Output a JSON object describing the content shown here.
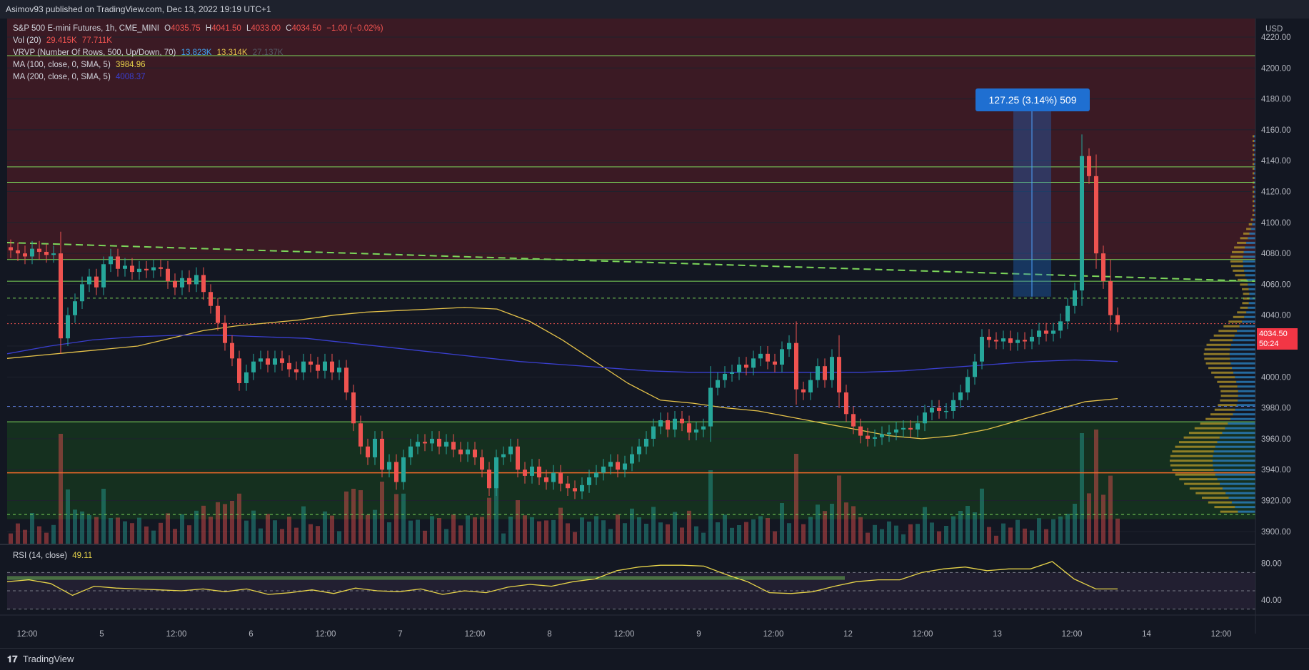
{
  "header": {
    "published_text": "Asimov93 published on TradingView.com, Dec 13, 2022 19:19 UTC+1"
  },
  "legend": {
    "symbol": "S&P 500 E-mini Futures, 1h, CME_MINI",
    "ohlc": {
      "o_label": "O",
      "o": "4035.75",
      "h_label": "H",
      "h": "4041.50",
      "l_label": "L",
      "l": "4033.00",
      "c_label": "C",
      "c": "4034.50",
      "change": "−1.00 (−0.02%)"
    },
    "vol": {
      "label": "Vol (20)",
      "v1": "29.415K",
      "v2": "77.711K"
    },
    "vrvp": {
      "label": "VRVP (Number Of Rows, 500, Up/Down, 70)",
      "v1": "13.823K",
      "v2": "13.314K",
      "v3": "27.137K"
    },
    "ma100": {
      "label": "MA (100, close, 0, SMA, 5)",
      "value": "3984.96"
    },
    "ma200": {
      "label": "MA (200, close, 0, SMA, 5)",
      "value": "4008.37"
    },
    "rsi": {
      "label": "RSI (14, close)",
      "value": "49.11"
    }
  },
  "colors": {
    "up": "#26a69a",
    "down": "#ef5350",
    "ma100": "#e6c34a",
    "ma200": "#3a3fd0",
    "rsi": "#e6d34a",
    "resistance_zone": "#4a1c26",
    "support_zone": "#16351f",
    "green_line": "#7cd65a",
    "orange_line": "#f26a2a",
    "measure": "#1f6fd1",
    "price_tag": "#f23645",
    "background": "#131722"
  },
  "measure_label": "127.25 (3.14%) 509",
  "last_price": {
    "price": "4034.50",
    "countdown": "50:24"
  },
  "price_axis": {
    "currency": "USD",
    "ticks": [
      "4220.00",
      "4200.00",
      "4180.00",
      "4160.00",
      "4140.00",
      "4120.00",
      "4100.00",
      "4080.00",
      "4060.00",
      "4040.00",
      "4020.00",
      "4000.00",
      "3980.00",
      "3960.00",
      "3940.00",
      "3920.00",
      "3900.00"
    ]
  },
  "rsi_axis": {
    "ticks": [
      "80.00",
      "40.00"
    ]
  },
  "time_axis": {
    "labels": [
      "12:00",
      "5",
      "12:00",
      "6",
      "12:00",
      "7",
      "12:00",
      "8",
      "12:00",
      "9",
      "12:00",
      "12",
      "12:00",
      "13",
      "12:00",
      "14",
      "12:00"
    ]
  },
  "footer": {
    "brand": "TradingView"
  },
  "chart_data": {
    "type": "candlestick",
    "title": "S&P 500 E-mini Futures, 1h, CME_MINI",
    "y_unit": "USD",
    "ylim": [
      3893,
      4232
    ],
    "levels": [
      {
        "kind": "resistance_zone",
        "from": 4126,
        "to": 4232
      },
      {
        "kind": "resistance_zone",
        "from": 4076,
        "to": 4126
      },
      {
        "kind": "support_zone",
        "from": 3908,
        "to": 3971
      },
      {
        "kind": "green_line",
        "value": 4208
      },
      {
        "kind": "green_line",
        "value": 4136
      },
      {
        "kind": "green_line",
        "value": 4126
      },
      {
        "kind": "green_line",
        "value": 4076
      },
      {
        "kind": "green_line",
        "value": 4062
      },
      {
        "kind": "green_line",
        "value": 3971
      },
      {
        "kind": "orange_line",
        "value": 3938
      },
      {
        "kind": "green_dashed",
        "value": 4051
      },
      {
        "kind": "green_dashed",
        "value": 3911
      },
      {
        "kind": "blue_dashed",
        "value": 3981
      },
      {
        "kind": "trendline_dashed",
        "from": 4087,
        "to": 4062
      }
    ],
    "closes": [
      4082,
      4080,
      4078,
      4083,
      4081,
      4079,
      4080,
      4025,
      4040,
      4049,
      4060,
      4065,
      4058,
      4073,
      4078,
      4070,
      4072,
      4068,
      4070,
      4069,
      4071,
      4070,
      4062,
      4058,
      4064,
      4060,
      4066,
      4055,
      4046,
      4035,
      4022,
      4012,
      3996,
      4003,
      4010,
      4012,
      4008,
      4012,
      4009,
      4005,
      4003,
      4010,
      4008,
      4004,
      4010,
      4003,
      4006,
      3990,
      3970,
      3955,
      3948,
      3960,
      3940,
      3945,
      3932,
      3948,
      3955,
      3958,
      3957,
      3960,
      3955,
      3958,
      3953,
      3950,
      3953,
      3948,
      3940,
      3928,
      3948,
      3950,
      3955,
      3940,
      3936,
      3942,
      3935,
      3932,
      3938,
      3931,
      3928,
      3926,
      3930,
      3935,
      3938,
      3942,
      3945,
      3940,
      3944,
      3950,
      3955,
      3960,
      3968,
      3972,
      3966,
      3973,
      3970,
      3964,
      3966,
      3968,
      3993,
      3998,
      4002,
      4003,
      4008,
      4006,
      4012,
      4015,
      4010,
      4008,
      4018,
      4022,
      3992,
      3990,
      3998,
      4007,
      3998,
      4013,
      3990,
      3976,
      3968,
      3962,
      3960,
      3961,
      3963,
      3964,
      3966,
      3967,
      3966,
      3970,
      3977,
      3980,
      3978,
      3978,
      3985,
      3990,
      4000,
      4010,
      4026,
      4024,
      4023,
      4025,
      4022,
      4024,
      4023,
      4026,
      4030,
      4028,
      4030,
      4036,
      4046,
      4056,
      4143,
      4130,
      4080,
      4062,
      4040,
      4034
    ],
    "ma100": [
      4012,
      4014,
      4016,
      4018,
      4020,
      4025,
      4030,
      4033,
      4035,
      4037,
      4040,
      4042,
      4043,
      4044,
      4045,
      4044,
      4036,
      4024,
      4010,
      3996,
      3985,
      3983,
      3980,
      3978,
      3974,
      3970,
      3966,
      3962,
      3960,
      3962,
      3966,
      3972,
      3978,
      3984,
      3986
    ],
    "ma200": [
      4015,
      4020,
      4024,
      4026,
      4027,
      4027,
      4026,
      4025,
      4022,
      4019,
      4016,
      4013,
      4010,
      4008,
      4006,
      4004,
      4003,
      4003,
      4003,
      4003,
      4003,
      4004,
      4006,
      4008,
      4010,
      4011,
      4010
    ],
    "rsi": [
      60,
      62,
      58,
      45,
      55,
      53,
      52,
      51,
      50,
      52,
      49,
      52,
      46,
      48,
      51,
      47,
      53,
      50,
      49,
      52,
      46,
      50,
      48,
      54,
      57,
      55,
      60,
      63,
      72,
      76,
      78,
      78,
      77,
      68,
      60,
      48,
      47,
      49,
      55,
      60,
      62,
      62,
      70,
      74,
      76,
      72,
      74,
      74,
      82,
      63,
      52,
      52
    ],
    "rsi_ylim": [
      25,
      100
    ]
  }
}
